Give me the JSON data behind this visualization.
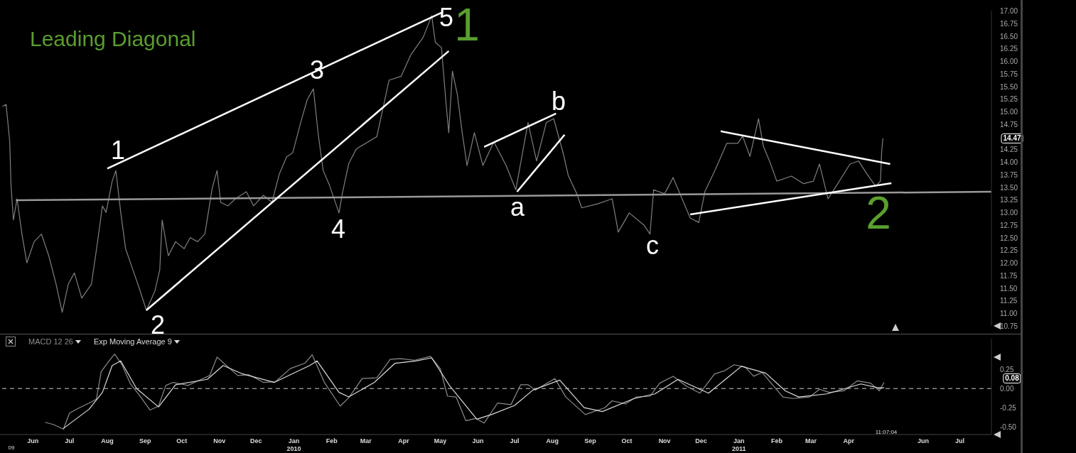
{
  "chart_data": [
    {
      "type": "line",
      "title": "Leading Diagonal",
      "xlim": [
        "2009-05-05",
        "2011-07-27"
      ],
      "ylim": [
        10.75,
        17.0
      ],
      "tick_labels": "y",
      "yticks": [
        {
          "value": 10.75,
          "label": "10.75"
        },
        {
          "value": 11.0,
          "label": "11.00"
        },
        {
          "value": 11.25,
          "label": "11.25"
        },
        {
          "value": 11.5,
          "label": "11.50"
        },
        {
          "value": 11.75,
          "label": "11.75"
        },
        {
          "value": 12.0,
          "label": "12.00"
        },
        {
          "value": 12.25,
          "label": "12.25"
        },
        {
          "value": 12.5,
          "label": "12.50"
        },
        {
          "value": 12.75,
          "label": "12.75"
        },
        {
          "value": 13.0,
          "label": "13.00"
        },
        {
          "value": 13.25,
          "label": "13.25"
        },
        {
          "value": 13.5,
          "label": "13.50"
        },
        {
          "value": 13.75,
          "label": "13.75"
        },
        {
          "value": 14.0,
          "label": "14.00"
        },
        {
          "value": 14.25,
          "label": "14.25"
        },
        {
          "value": 14.75,
          "label": "14.75"
        },
        {
          "value": 15.0,
          "label": "15.00"
        },
        {
          "value": 15.25,
          "label": "15.25"
        },
        {
          "value": 15.5,
          "label": "15.50"
        },
        {
          "value": 15.75,
          "label": "15.75"
        },
        {
          "value": 16.0,
          "label": "16.00"
        },
        {
          "value": 16.25,
          "label": "16.25"
        },
        {
          "value": 16.5,
          "label": "16.50"
        },
        {
          "value": 16.75,
          "label": "16.75"
        },
        {
          "value": 17.0,
          "label": "17.00"
        }
      ],
      "series": [
        {
          "color": "#7f7f7f",
          "x": [
            "2009-05-07",
            "2009-05-10",
            "2009-05-13",
            "2009-05-14",
            "2009-05-16",
            "2009-05-19",
            "2009-05-23",
            "2009-05-27",
            "2009-06-02",
            "2009-06-08",
            "2009-06-14",
            "2009-06-20",
            "2009-06-25",
            "2009-06-30",
            "2009-07-05",
            "2009-07-11",
            "2009-07-19",
            "2009-07-24",
            "2009-07-28",
            "2009-07-31",
            "2009-08-05",
            "2009-08-08",
            "2009-08-12",
            "2009-08-16",
            "2009-08-22",
            "2009-08-28",
            "2009-09-02",
            "2009-09-09",
            "2009-09-13",
            "2009-09-15",
            "2009-09-20",
            "2009-09-26",
            "2009-10-03",
            "2009-10-08",
            "2009-10-14",
            "2009-10-20",
            "2009-10-26",
            "2009-10-30",
            "2009-11-02",
            "2009-11-08",
            "2009-11-14",
            "2009-11-23",
            "2009-11-29",
            "2009-12-07",
            "2009-12-14",
            "2009-12-20",
            "2009-12-26",
            "2009-12-31",
            "2010-01-07",
            "2010-01-12",
            "2010-01-17",
            "2010-01-21",
            "2010-01-25",
            "2010-01-30",
            "2010-02-07",
            "2010-02-10",
            "2010-02-15",
            "2010-02-21",
            "2010-02-24",
            "2010-03-10",
            "2010-03-20",
            "2010-03-30",
            "2010-04-07",
            "2010-04-17",
            "2010-04-24",
            "2010-04-27",
            "2010-05-02",
            "2010-05-06",
            "2010-05-08",
            "2010-05-11",
            "2010-05-15",
            "2010-05-19",
            "2010-05-23",
            "2010-05-29",
            "2010-06-05",
            "2010-06-14",
            "2010-06-24",
            "2010-07-02",
            "2010-07-12",
            "2010-07-19",
            "2010-07-27",
            "2010-08-02",
            "2010-08-10",
            "2010-08-14",
            "2010-08-21",
            "2010-08-25",
            "2010-09-07",
            "2010-09-19",
            "2010-09-24",
            "2010-10-03",
            "2010-10-15",
            "2010-10-20",
            "2010-10-23",
            "2010-11-01",
            "2010-11-08",
            "2010-11-16",
            "2010-11-22",
            "2010-11-29",
            "2010-12-04",
            "2010-12-12",
            "2010-12-22",
            "2010-12-31",
            "2011-01-04",
            "2011-01-10",
            "2011-01-17",
            "2011-01-21",
            "2011-01-26",
            "2011-02-01",
            "2011-02-13",
            "2011-02-23",
            "2011-03-03",
            "2011-03-08",
            "2011-03-15",
            "2011-03-23",
            "2011-04-02",
            "2011-04-09",
            "2011-04-16",
            "2011-04-23",
            "2011-04-27",
            "2011-04-28",
            "2011-04-29"
          ],
          "values": [
            15.1,
            15.14,
            14.4,
            13.55,
            12.85,
            13.27,
            12.57,
            12.0,
            12.42,
            12.57,
            12.14,
            11.58,
            11.02,
            11.58,
            11.8,
            11.3,
            11.58,
            12.42,
            13.13,
            13.0,
            13.62,
            13.83,
            13.0,
            12.28,
            11.86,
            11.44,
            11.06,
            11.44,
            11.86,
            12.85,
            12.14,
            12.42,
            12.28,
            12.5,
            12.42,
            12.57,
            13.48,
            13.83,
            13.2,
            13.13,
            13.27,
            13.41,
            13.13,
            13.34,
            13.2,
            13.76,
            14.1,
            14.18,
            14.82,
            15.24,
            15.45,
            14.54,
            13.83,
            13.55,
            12.99,
            13.41,
            13.97,
            14.25,
            14.3,
            14.5,
            15.62,
            15.7,
            16.13,
            16.47,
            16.9,
            16.37,
            16.27,
            15.1,
            14.58,
            15.8,
            15.34,
            14.58,
            13.93,
            14.58,
            13.93,
            14.4,
            13.93,
            13.45,
            14.78,
            14.02,
            14.78,
            14.86,
            14.16,
            13.73,
            13.37,
            13.09,
            13.17,
            13.27,
            12.61,
            12.99,
            12.75,
            12.57,
            13.45,
            13.37,
            13.69,
            13.23,
            12.89,
            12.8,
            13.41,
            13.82,
            14.37,
            14.37,
            14.51,
            14.11,
            14.86,
            14.31,
            14.02,
            13.62,
            13.72,
            13.57,
            13.62,
            13.96,
            13.27,
            13.57,
            13.96,
            14.02,
            13.76,
            13.52,
            13.62,
            14.21,
            14.47
          ]
        },
        {
          "color": "#999999",
          "x": [
            "2009-05-18",
            "2011-07-27"
          ],
          "values": [
            13.24,
            13.41
          ]
        },
        {
          "color": "#ffffff",
          "x": [
            "2009-08-01",
            "2010-05-02"
          ],
          "values": [
            13.87,
            16.96
          ]
        },
        {
          "color": "#ffffff",
          "x": [
            "2009-09-02",
            "2010-05-08"
          ],
          "values": [
            11.06,
            16.2
          ]
        },
        {
          "color": "#ffffff",
          "x": [
            "2010-06-06",
            "2010-08-04"
          ],
          "values": [
            14.3,
            14.96
          ]
        },
        {
          "color": "#ffffff",
          "x": [
            "2010-07-03",
            "2010-08-11"
          ],
          "values": [
            13.41,
            14.54
          ]
        },
        {
          "color": "#ffffff",
          "x": [
            "2010-12-17",
            "2011-05-05"
          ],
          "values": [
            14.61,
            13.96
          ]
        },
        {
          "color": "#ffffff",
          "x": [
            "2010-11-22",
            "2011-05-06"
          ],
          "values": [
            12.96,
            13.58
          ]
        }
      ],
      "annotations": [
        "1",
        "2",
        "3",
        "4",
        "5",
        "1",
        "a",
        "b",
        "c",
        "2",
        "14.47"
      ]
    },
    {
      "type": "line",
      "xlim": [
        "2009-05-05",
        "2011-07-27"
      ],
      "ylim": [
        -0.6,
        0.65
      ],
      "legend": "top left",
      "yticks": [
        {
          "value": 0.25,
          "label": "0.25"
        },
        {
          "value": 0,
          "label": "0.00"
        },
        {
          "value": -0.25,
          "label": "-0.25"
        },
        {
          "value": -0.5,
          "label": "-0.50"
        }
      ],
      "xticks": [
        {
          "value": "2009-06-01",
          "label": "Jun"
        },
        {
          "value": "2009-07-01",
          "label": "Jul"
        },
        {
          "value": "2009-08-01",
          "label": "Aug"
        },
        {
          "value": "2009-09-01",
          "label": "Sep"
        },
        {
          "value": "2009-10-01",
          "label": "Oct"
        },
        {
          "value": "2009-11-01",
          "label": "Nov"
        },
        {
          "value": "2009-12-01",
          "label": "Dec"
        },
        {
          "value": "2010-01-01",
          "label": "Jan 2010"
        },
        {
          "value": "2010-02-01",
          "label": "Feb"
        },
        {
          "value": "2010-03-01",
          "label": "Mar"
        },
        {
          "value": "2010-04-01",
          "label": "Apr"
        },
        {
          "value": "2010-05-01",
          "label": "May"
        },
        {
          "value": "2010-06-01",
          "label": "Jun"
        },
        {
          "value": "2010-07-01",
          "label": "Jul"
        },
        {
          "value": "2010-08-01",
          "label": "Aug"
        },
        {
          "value": "2010-09-01",
          "label": "Sep"
        },
        {
          "value": "2010-10-01",
          "label": "Oct"
        },
        {
          "value": "2010-11-01",
          "label": "Nov"
        },
        {
          "value": "2010-12-01",
          "label": "Dec"
        },
        {
          "value": "2011-01-01",
          "label": "Jan 2011"
        },
        {
          "value": "2011-02-01",
          "label": "Feb"
        },
        {
          "value": "2011-03-01",
          "label": "Mar"
        },
        {
          "value": "2011-04-01",
          "label": "Apr"
        },
        {
          "value": "2011-06-01",
          "label": "Jun"
        },
        {
          "value": "2011-07-01",
          "label": "Jul"
        }
      ],
      "series": [
        {
          "name": "MACD 12 26",
          "color": "#8c8c8c",
          "x": [
            "2009-06-11",
            "2009-06-18",
            "2009-06-26",
            "2009-07-01",
            "2009-07-08",
            "2009-07-17",
            "2009-07-23",
            "2009-07-27",
            "2009-08-02",
            "2009-08-07",
            "2009-08-13",
            "2009-08-20",
            "2009-08-27",
            "2009-09-05",
            "2009-09-12",
            "2009-09-18",
            "2009-09-24",
            "2009-10-06",
            "2009-10-17",
            "2009-10-24",
            "2009-10-30",
            "2009-11-06",
            "2009-11-16",
            "2009-11-25",
            "2009-12-07",
            "2009-12-17",
            "2009-12-29",
            "2010-01-10",
            "2010-01-16",
            "2010-01-26",
            "2010-02-08",
            "2010-02-15",
            "2010-02-26",
            "2010-03-10",
            "2010-03-21",
            "2010-03-29",
            "2010-04-10",
            "2010-04-23",
            "2010-05-01",
            "2010-05-07",
            "2010-05-14",
            "2010-05-22",
            "2010-05-30",
            "2010-06-06",
            "2010-06-17",
            "2010-06-28",
            "2010-07-06",
            "2010-07-12",
            "2010-07-18",
            "2010-08-03",
            "2010-08-12",
            "2010-08-28",
            "2010-09-13",
            "2010-09-19",
            "2010-09-30",
            "2010-10-09",
            "2010-10-20",
            "2010-10-28",
            "2010-11-08",
            "2010-11-19",
            "2010-11-30",
            "2010-12-12",
            "2010-12-20",
            "2010-12-28",
            "2011-01-06",
            "2011-01-13",
            "2011-01-20",
            "2011-02-06",
            "2011-02-14",
            "2011-02-28",
            "2011-03-08",
            "2011-03-16",
            "2011-03-28",
            "2011-04-08",
            "2011-04-19",
            "2011-04-26",
            "2011-04-30"
          ],
          "values": [
            -0.44,
            -0.47,
            -0.53,
            -0.32,
            -0.26,
            -0.19,
            -0.14,
            0.22,
            0.35,
            0.45,
            0.31,
            0.06,
            -0.08,
            -0.28,
            -0.23,
            0.04,
            0.08,
            0.04,
            0.12,
            0.17,
            0.41,
            0.31,
            0.17,
            0.18,
            0.08,
            0.09,
            0.26,
            0.33,
            0.44,
            0.08,
            -0.23,
            -0.12,
            0.13,
            0.14,
            0.38,
            0.39,
            0.37,
            0.42,
            0.26,
            -0.1,
            -0.11,
            -0.42,
            -0.39,
            -0.45,
            -0.19,
            -0.21,
            0.05,
            0.05,
            -0.02,
            0.13,
            -0.11,
            -0.34,
            -0.25,
            -0.16,
            -0.2,
            -0.11,
            -0.1,
            0.07,
            0.16,
            0.03,
            -0.06,
            0.19,
            0.23,
            0.31,
            0.28,
            0.16,
            0.21,
            -0.11,
            -0.13,
            -0.11,
            -0.01,
            -0.05,
            -0.03,
            0.1,
            0.07,
            -0.03,
            0.08
          ]
        },
        {
          "name": "Exp Moving Average 9",
          "color": "#dcdcdc",
          "x": [
            "2009-06-26",
            "2009-07-17",
            "2009-07-28",
            "2009-08-05",
            "2009-08-12",
            "2009-08-25",
            "2009-09-12",
            "2009-09-26",
            "2009-10-22",
            "2009-11-04",
            "2009-11-20",
            "2009-12-16",
            "2010-01-14",
            "2010-01-20",
            "2010-02-07",
            "2010-02-15",
            "2010-03-08",
            "2010-03-25",
            "2010-04-11",
            "2010-04-24",
            "2010-05-09",
            "2010-05-31",
            "2010-06-12",
            "2010-07-01",
            "2010-07-16",
            "2010-08-07",
            "2010-08-27",
            "2010-09-11",
            "2010-10-07",
            "2010-10-24",
            "2010-11-12",
            "2010-12-07",
            "2011-01-03",
            "2011-01-23",
            "2011-02-08",
            "2011-02-19",
            "2011-03-14",
            "2011-04-11",
            "2011-04-25",
            "2011-04-30"
          ],
          "values": [
            -0.52,
            -0.27,
            -0.05,
            0.3,
            0.36,
            0.0,
            -0.24,
            0.05,
            0.12,
            0.3,
            0.19,
            0.08,
            0.3,
            0.36,
            -0.05,
            -0.11,
            0.08,
            0.33,
            0.36,
            0.4,
            0.03,
            -0.4,
            -0.34,
            -0.22,
            -0.02,
            0.11,
            -0.25,
            -0.3,
            -0.13,
            -0.07,
            0.12,
            -0.06,
            0.29,
            0.2,
            -0.03,
            -0.11,
            -0.07,
            0.06,
            0.01,
            0.01
          ]
        }
      ],
      "ref_lines": [
        {
          "axis": "y",
          "value": 0,
          "color": "#cccccc",
          "line_style": "dashed"
        }
      ],
      "annotations": [
        "0.08",
        "09",
        "11:07:04"
      ]
    }
  ]
}
